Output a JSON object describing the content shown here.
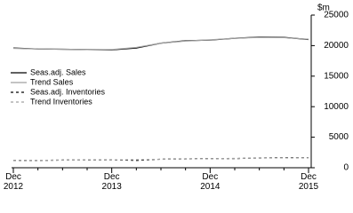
{
  "chart_data": {
    "type": "line",
    "y_label": "$m",
    "categories": [
      "Dec\n2012",
      null,
      null,
      null,
      "Dec\n2013",
      null,
      null,
      null,
      "Dec\n2014",
      null,
      null,
      null,
      "Dec\n2015"
    ],
    "series": [
      {
        "name": "Seas.adj. Sales",
        "color": "#000000",
        "line_style": "solid",
        "values": [
          19600,
          19450,
          19400,
          19350,
          19300,
          19600,
          20400,
          20800,
          20900,
          21200,
          21400,
          21350,
          21000
        ]
      },
      {
        "name": "Trend Sales",
        "color": "#a0a0a0",
        "line_style": "solid",
        "values": [
          19550,
          19450,
          19400,
          19350,
          19350,
          19700,
          20400,
          20750,
          20950,
          21200,
          21350,
          21300,
          21050
        ]
      },
      {
        "name": "Seas.adj. Inventories",
        "color": "#000000",
        "line_style": "dashed",
        "values": [
          1200,
          1200,
          1250,
          1250,
          1300,
          1200,
          1400,
          1450,
          1500,
          1500,
          1600,
          1650,
          1650
        ]
      },
      {
        "name": "Trend Inventories",
        "color": "#a0a0a0",
        "line_style": "dashed",
        "values": [
          1200,
          1220,
          1240,
          1260,
          1280,
          1320,
          1380,
          1440,
          1490,
          1530,
          1580,
          1620,
          1640
        ]
      }
    ],
    "ylim": [
      0,
      25000
    ],
    "yticks": [
      0,
      5000,
      10000,
      15000,
      20000,
      25000
    ],
    "y_axis_side": "right",
    "grid": false
  }
}
